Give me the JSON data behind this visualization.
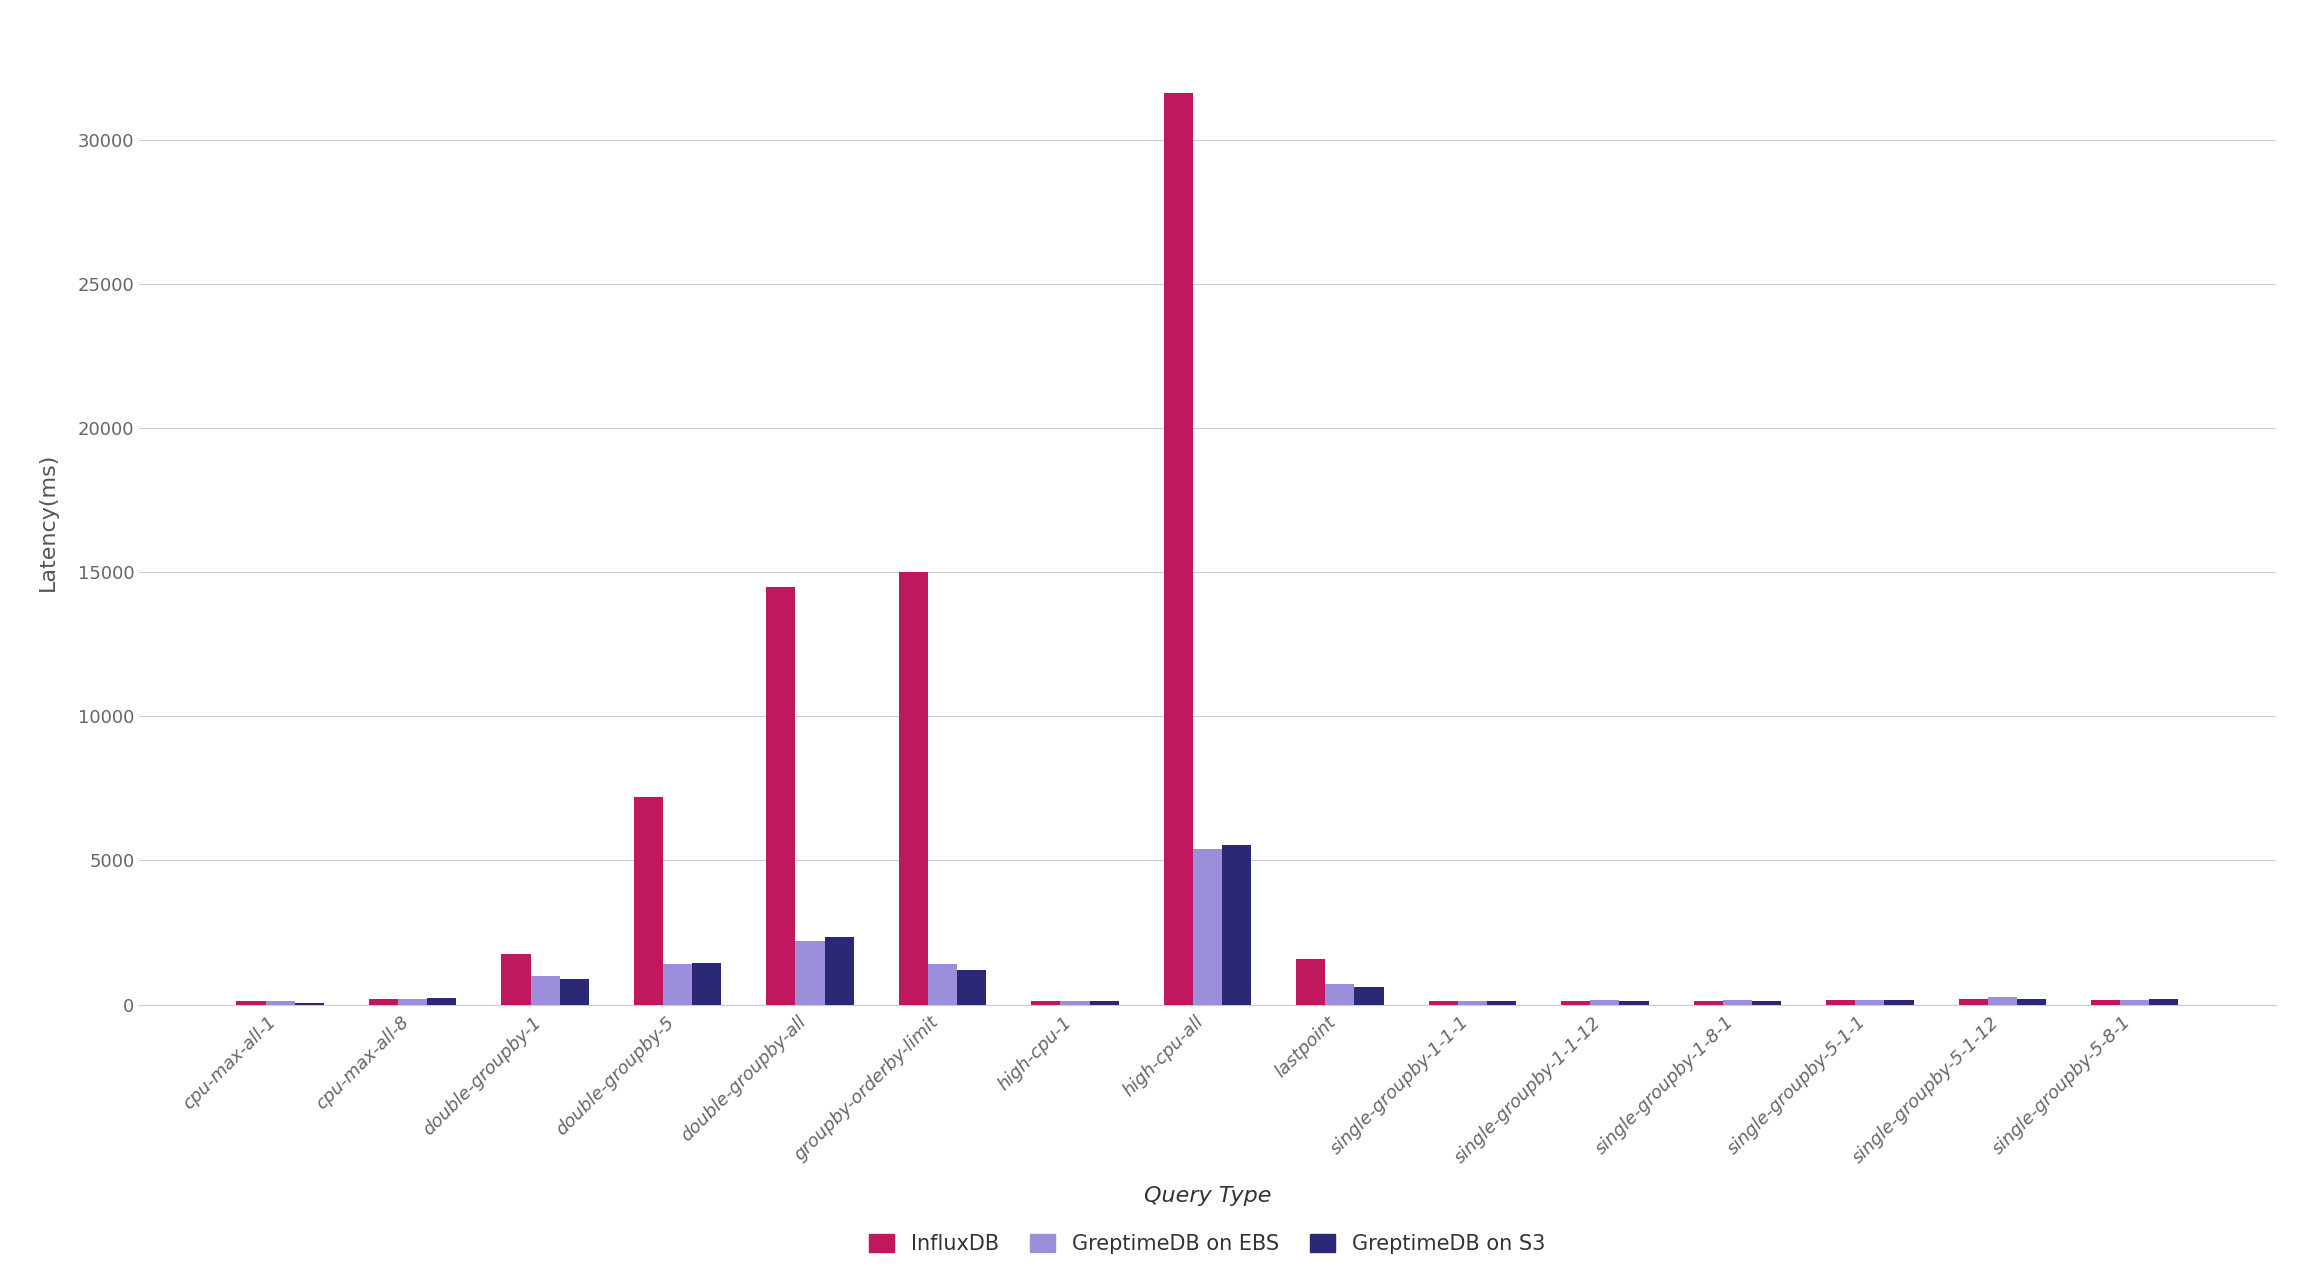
{
  "categories": [
    "cpu-max-all-1",
    "cpu-max-all-8",
    "double-groupby-1",
    "double-groupby-5",
    "double-groupby-all",
    "groupby-orderby-limit",
    "high-cpu-1",
    "high-cpu-all",
    "lastpoint",
    "single-groupby-1-1-1",
    "single-groupby-1-1-12",
    "single-groupby-1-8-1",
    "single-groupby-5-1-1",
    "single-groupby-5-1-12",
    "single-groupby-5-8-1"
  ],
  "influxdb": [
    120,
    190,
    1750,
    7200,
    14500,
    15000,
    130,
    31600,
    1600,
    130,
    130,
    130,
    160,
    180,
    160
  ],
  "greptimedb_ebs": [
    130,
    200,
    1000,
    1400,
    2200,
    1400,
    130,
    5400,
    700,
    130,
    150,
    170,
    170,
    270,
    170
  ],
  "greptimedb_s3": [
    70,
    240,
    900,
    1450,
    2350,
    1200,
    120,
    5550,
    600,
    110,
    130,
    130,
    150,
    200,
    200
  ],
  "influxdb_color": "#c0185e",
  "ebs_color": "#9b8fdb",
  "s3_color": "#2b2875",
  "background_color": "#ffffff",
  "grid_color": "#cccccc",
  "ylabel": "Latency(ms)",
  "xlabel": "Query Type",
  "legend_labels": [
    "InfluxDB",
    "GreptimeDB on EBS",
    "GreptimeDB on S3"
  ],
  "bar_width": 0.22,
  "ylim": [
    0,
    33500
  ],
  "yticks": [
    0,
    5000,
    10000,
    15000,
    20000,
    25000,
    30000
  ],
  "title_fontsize": 14,
  "axis_label_fontsize": 16,
  "tick_fontsize": 13,
  "legend_fontsize": 15
}
